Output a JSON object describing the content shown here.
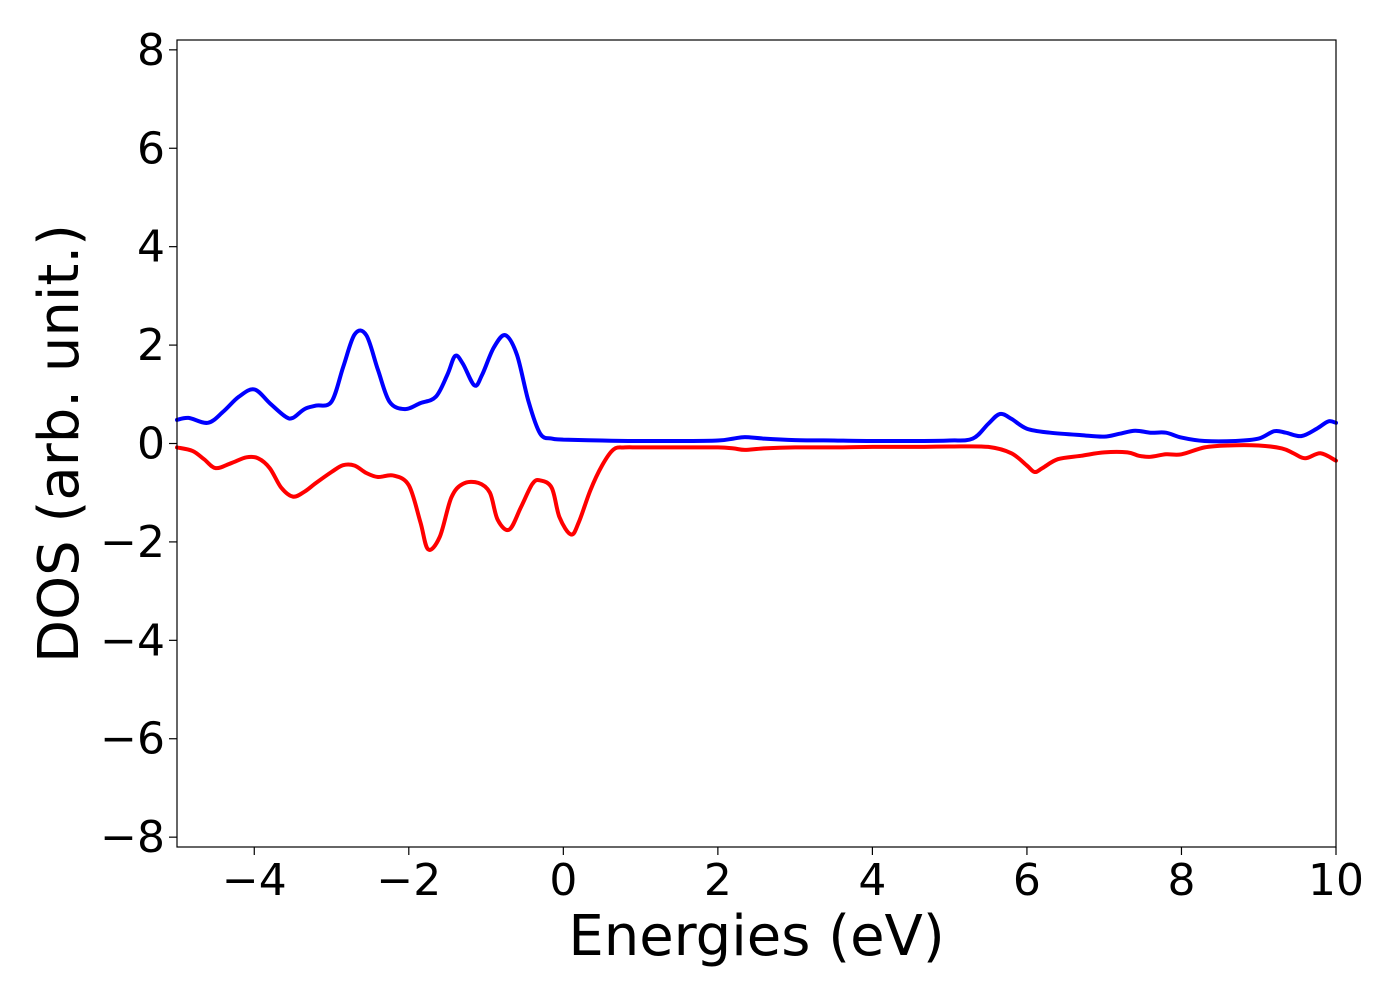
{
  "chart_data": {
    "type": "line",
    "title": "",
    "xlabel": "Energies (eV)",
    "ylabel": "DOS (arb. unit.)",
    "xlim": [
      -5,
      10
    ],
    "ylim": [
      -8.2,
      8.2
    ],
    "xticks": [
      -4,
      -2,
      0,
      2,
      4,
      6,
      8,
      10
    ],
    "xtick_labels": [
      "−4",
      "−2",
      "0",
      "2",
      "4",
      "6",
      "8",
      "10"
    ],
    "yticks": [
      8,
      6,
      4,
      2,
      0,
      -2,
      -4,
      -6,
      -8
    ],
    "ytick_labels": [
      "8",
      "6",
      "4",
      "2",
      "0",
      "−2",
      "−4",
      "−6",
      "−8"
    ],
    "grid": false,
    "legend": "none",
    "series": [
      {
        "color": "#0000ff",
        "x": [
          -5.0,
          -4.85,
          -4.6,
          -4.4,
          -4.2,
          -4.0,
          -3.8,
          -3.6,
          -3.5,
          -3.35,
          -3.2,
          -3.0,
          -2.85,
          -2.7,
          -2.55,
          -2.4,
          -2.25,
          -2.05,
          -1.85,
          -1.65,
          -1.5,
          -1.4,
          -1.3,
          -1.15,
          -1.05,
          -0.9,
          -0.75,
          -0.6,
          -0.45,
          -0.3,
          -0.15,
          0.0,
          0.5,
          1.0,
          1.5,
          2.0,
          2.2,
          2.35,
          2.6,
          3.0,
          3.5,
          4.0,
          4.5,
          5.0,
          5.3,
          5.5,
          5.65,
          5.8,
          6.0,
          6.3,
          6.7,
          7.0,
          7.2,
          7.4,
          7.6,
          7.8,
          8.0,
          8.3,
          8.7,
          9.0,
          9.2,
          9.35,
          9.55,
          9.75,
          9.9,
          10.0
        ],
        "y": [
          0.48,
          0.52,
          0.42,
          0.65,
          0.95,
          1.1,
          0.82,
          0.55,
          0.52,
          0.7,
          0.77,
          0.85,
          1.55,
          2.22,
          2.2,
          1.5,
          0.85,
          0.7,
          0.82,
          0.95,
          1.4,
          1.78,
          1.62,
          1.18,
          1.4,
          1.95,
          2.2,
          1.8,
          0.85,
          0.2,
          0.1,
          0.08,
          0.06,
          0.05,
          0.05,
          0.06,
          0.1,
          0.13,
          0.1,
          0.07,
          0.06,
          0.05,
          0.05,
          0.06,
          0.1,
          0.4,
          0.6,
          0.5,
          0.3,
          0.22,
          0.17,
          0.14,
          0.2,
          0.26,
          0.22,
          0.22,
          0.12,
          0.05,
          0.05,
          0.1,
          0.25,
          0.22,
          0.15,
          0.3,
          0.45,
          0.42
        ]
      },
      {
        "color": "#ff0000",
        "x": [
          -5.0,
          -4.8,
          -4.65,
          -4.5,
          -4.3,
          -4.1,
          -3.95,
          -3.8,
          -3.65,
          -3.5,
          -3.35,
          -3.2,
          -3.0,
          -2.85,
          -2.7,
          -2.55,
          -2.4,
          -2.2,
          -2.0,
          -1.85,
          -1.75,
          -1.6,
          -1.45,
          -1.3,
          -1.1,
          -0.95,
          -0.85,
          -0.7,
          -0.55,
          -0.4,
          -0.3,
          -0.15,
          -0.05,
          0.1,
          0.2,
          0.35,
          0.5,
          0.65,
          0.8,
          1.0,
          1.5,
          2.0,
          2.2,
          2.35,
          2.6,
          3.0,
          3.5,
          4.0,
          4.5,
          5.0,
          5.5,
          5.8,
          6.0,
          6.1,
          6.2,
          6.4,
          6.7,
          7.0,
          7.3,
          7.45,
          7.6,
          7.8,
          8.0,
          8.3,
          8.6,
          9.0,
          9.3,
          9.45,
          9.6,
          9.8,
          10.0
        ],
        "y": [
          -0.08,
          -0.15,
          -0.32,
          -0.5,
          -0.4,
          -0.28,
          -0.3,
          -0.5,
          -0.9,
          -1.08,
          -0.98,
          -0.8,
          -0.58,
          -0.44,
          -0.45,
          -0.6,
          -0.68,
          -0.65,
          -0.85,
          -1.6,
          -2.15,
          -1.9,
          -1.1,
          -0.82,
          -0.8,
          -1.0,
          -1.55,
          -1.75,
          -1.3,
          -0.82,
          -0.75,
          -0.9,
          -1.5,
          -1.85,
          -1.6,
          -0.95,
          -0.45,
          -0.12,
          -0.08,
          -0.08,
          -0.08,
          -0.08,
          -0.1,
          -0.13,
          -0.1,
          -0.08,
          -0.08,
          -0.07,
          -0.07,
          -0.06,
          -0.07,
          -0.2,
          -0.45,
          -0.58,
          -0.5,
          -0.32,
          -0.25,
          -0.18,
          -0.18,
          -0.25,
          -0.27,
          -0.22,
          -0.22,
          -0.08,
          -0.04,
          -0.04,
          -0.1,
          -0.2,
          -0.3,
          -0.2,
          -0.35
        ]
      }
    ]
  }
}
